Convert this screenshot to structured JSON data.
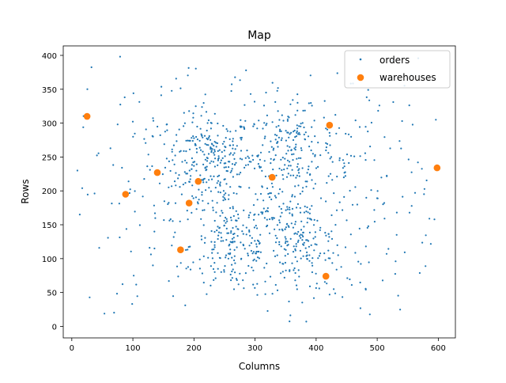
{
  "chart_data": {
    "type": "scatter",
    "title": "Map",
    "xlabel": "Columns",
    "ylabel": "Rows",
    "xlim": [
      -14,
      628
    ],
    "ylim": [
      -17,
      414
    ],
    "x_ticks": [
      0,
      100,
      200,
      300,
      400,
      500,
      600
    ],
    "y_ticks": [
      0,
      50,
      100,
      150,
      200,
      250,
      300,
      350,
      400
    ],
    "grid": false,
    "legend_position": "top-right",
    "series": [
      {
        "name": "orders",
        "color": "#1f77b4",
        "marker": "small-dot",
        "clusters_approx": [
          {
            "center": [
              225,
              250
            ],
            "spread": [
              35,
              30
            ],
            "count": 180
          },
          {
            "center": [
              360,
              260
            ],
            "spread": [
              35,
              30
            ],
            "count": 150
          },
          {
            "center": [
              265,
              120
            ],
            "spread": [
              35,
              35
            ],
            "count": 160
          },
          {
            "center": [
              375,
              120
            ],
            "spread": [
              35,
              35
            ],
            "count": 150
          },
          {
            "center": [
              300,
              200
            ],
            "spread": [
              160,
              95
            ],
            "count": 520
          }
        ]
      },
      {
        "name": "warehouses",
        "color": "#ff7f0e",
        "marker": "circle",
        "points": [
          [
            25,
            310
          ],
          [
            422,
            297
          ],
          [
            598,
            234
          ],
          [
            140,
            227
          ],
          [
            328,
            220
          ],
          [
            207,
            214
          ],
          [
            88,
            195
          ],
          [
            192,
            182
          ],
          [
            178,
            113
          ],
          [
            416,
            74
          ]
        ]
      }
    ]
  }
}
